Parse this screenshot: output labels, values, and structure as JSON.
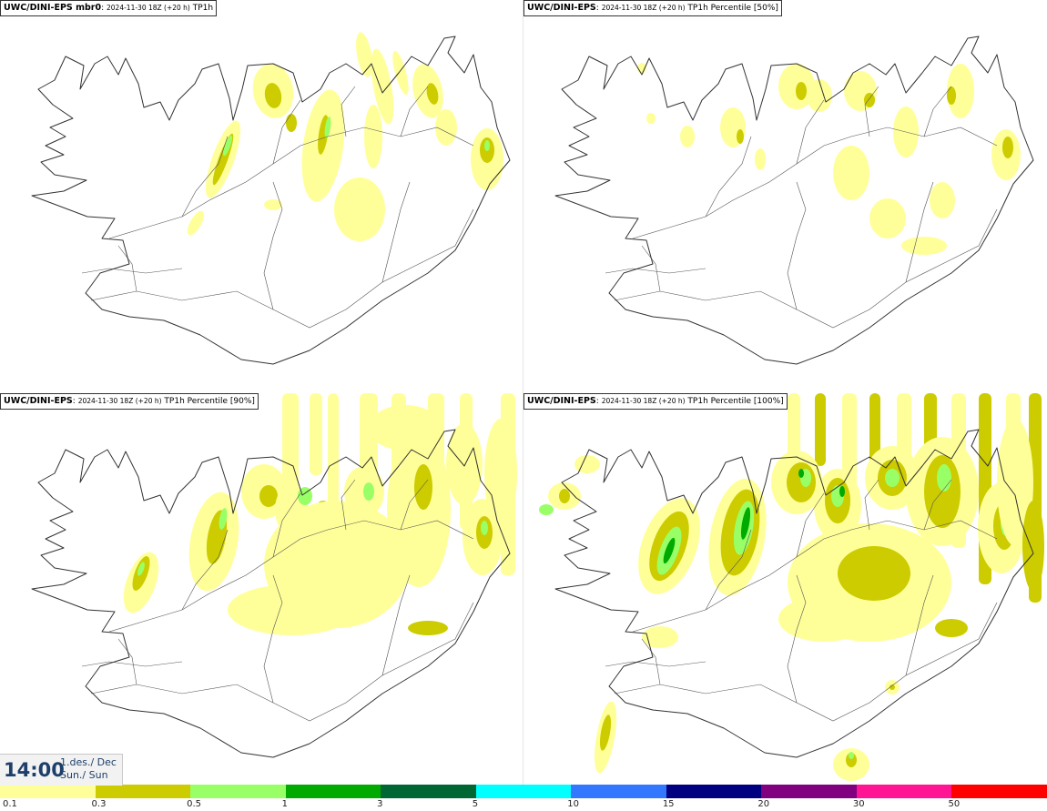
{
  "panels": [
    {
      "model": "UWC/DINI-EPS mbr0",
      "run": "2024-11-30 18Z (+20 h)",
      "field": "TP1h"
    },
    {
      "model": "UWC/DINI-EPS",
      "run": "2024-11-30 18Z (+20 h)",
      "field": "TP1h Percentile [50%]"
    },
    {
      "model": "UWC/DINI-EPS",
      "run": "2024-11-30 18Z (+20 h)",
      "field": "TP1h Percentile [90%]"
    },
    {
      "model": "UWC/DINI-EPS",
      "run": "2024-11-30 18Z (+20 h)",
      "field": "TP1h Percentile [100%]"
    }
  ],
  "valid_time": {
    "time": "14:00",
    "date_line": "1.des./ Dec",
    "day_line": "Sun./ Sun"
  },
  "legend": {
    "levels": [
      "0.1",
      "0.3",
      "0.5",
      "1",
      "3",
      "5",
      "10",
      "15",
      "20",
      "30",
      "50"
    ],
    "colors": [
      "#ffff99",
      "#cccc00",
      "#99ff66",
      "#00aa00",
      "#006633",
      "#00ffff",
      "#3377ff",
      "#000080",
      "#800080",
      "#ff1493",
      "#ff0000"
    ]
  },
  "colors": {
    "coast": "#333333",
    "precip_light": "#ffff99",
    "precip_moderate": "#cccc00",
    "precip_heavy": "#99ff66",
    "precip_very_heavy": "#00aa00"
  }
}
